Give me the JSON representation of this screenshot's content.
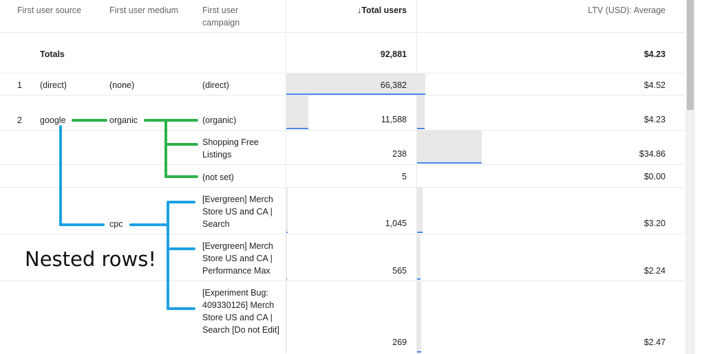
{
  "headers": {
    "source": "First user source",
    "medium": "First user medium",
    "campaign": "First user campaign",
    "total_users": "Total users",
    "ltv": "LTV (USD): Average",
    "sort_icon": "arrow-down-icon"
  },
  "totals": {
    "label": "Totals",
    "total_users": "92,881",
    "ltv": "$4.23"
  },
  "rows": [
    {
      "index": "1",
      "source": "(direct)",
      "medium": "(none)",
      "campaign": "(direct)",
      "total_users": "66,382",
      "ltv": "$4.52",
      "users_share": 0.715,
      "ltv_share": 0.13
    },
    {
      "index": "2",
      "source": "google",
      "medium": "organic",
      "campaign": "(organic)",
      "total_users": "11,588",
      "ltv": "$4.23",
      "users_share": 0.125,
      "ltv_share": 0.12
    },
    {
      "index": "",
      "source": "",
      "medium": "",
      "campaign": "Shopping Free Listings",
      "total_users": "238",
      "ltv": "$34.86",
      "users_share": 0.003,
      "ltv_share": 1.0
    },
    {
      "index": "",
      "source": "",
      "medium": "",
      "campaign": "(not set)",
      "total_users": "5",
      "ltv": "$0.00",
      "users_share": 0.0,
      "ltv_share": 0.0
    },
    {
      "index": "",
      "source": "",
      "medium": "cpc",
      "campaign": "[Evergreen] Merch Store US and CA | Search",
      "total_users": "1,045",
      "ltv": "$3.20",
      "users_share": 0.011,
      "ltv_share": 0.09
    },
    {
      "index": "",
      "source": "",
      "medium": "",
      "campaign": "[Evergreen] Merch Store US and CA | Performance Max",
      "total_users": "565",
      "ltv": "$2.24",
      "users_share": 0.006,
      "ltv_share": 0.064
    },
    {
      "index": "",
      "source": "",
      "medium": "",
      "campaign": "[Experiment Bug: 409330126] Merch Store US and CA | Search [Do not Edit]",
      "total_users": "269",
      "ltv": "$2.47",
      "users_share": 0.003,
      "ltv_share": 0.07
    }
  ],
  "annotation": {
    "text": "Nested rows!",
    "green_color": "#2db24a",
    "blue_color": "#1ba1e2"
  },
  "colors": {
    "bar_bg": "#e8e8e8",
    "bar_line": "#4a86e8",
    "header_text": "#5f6368"
  }
}
